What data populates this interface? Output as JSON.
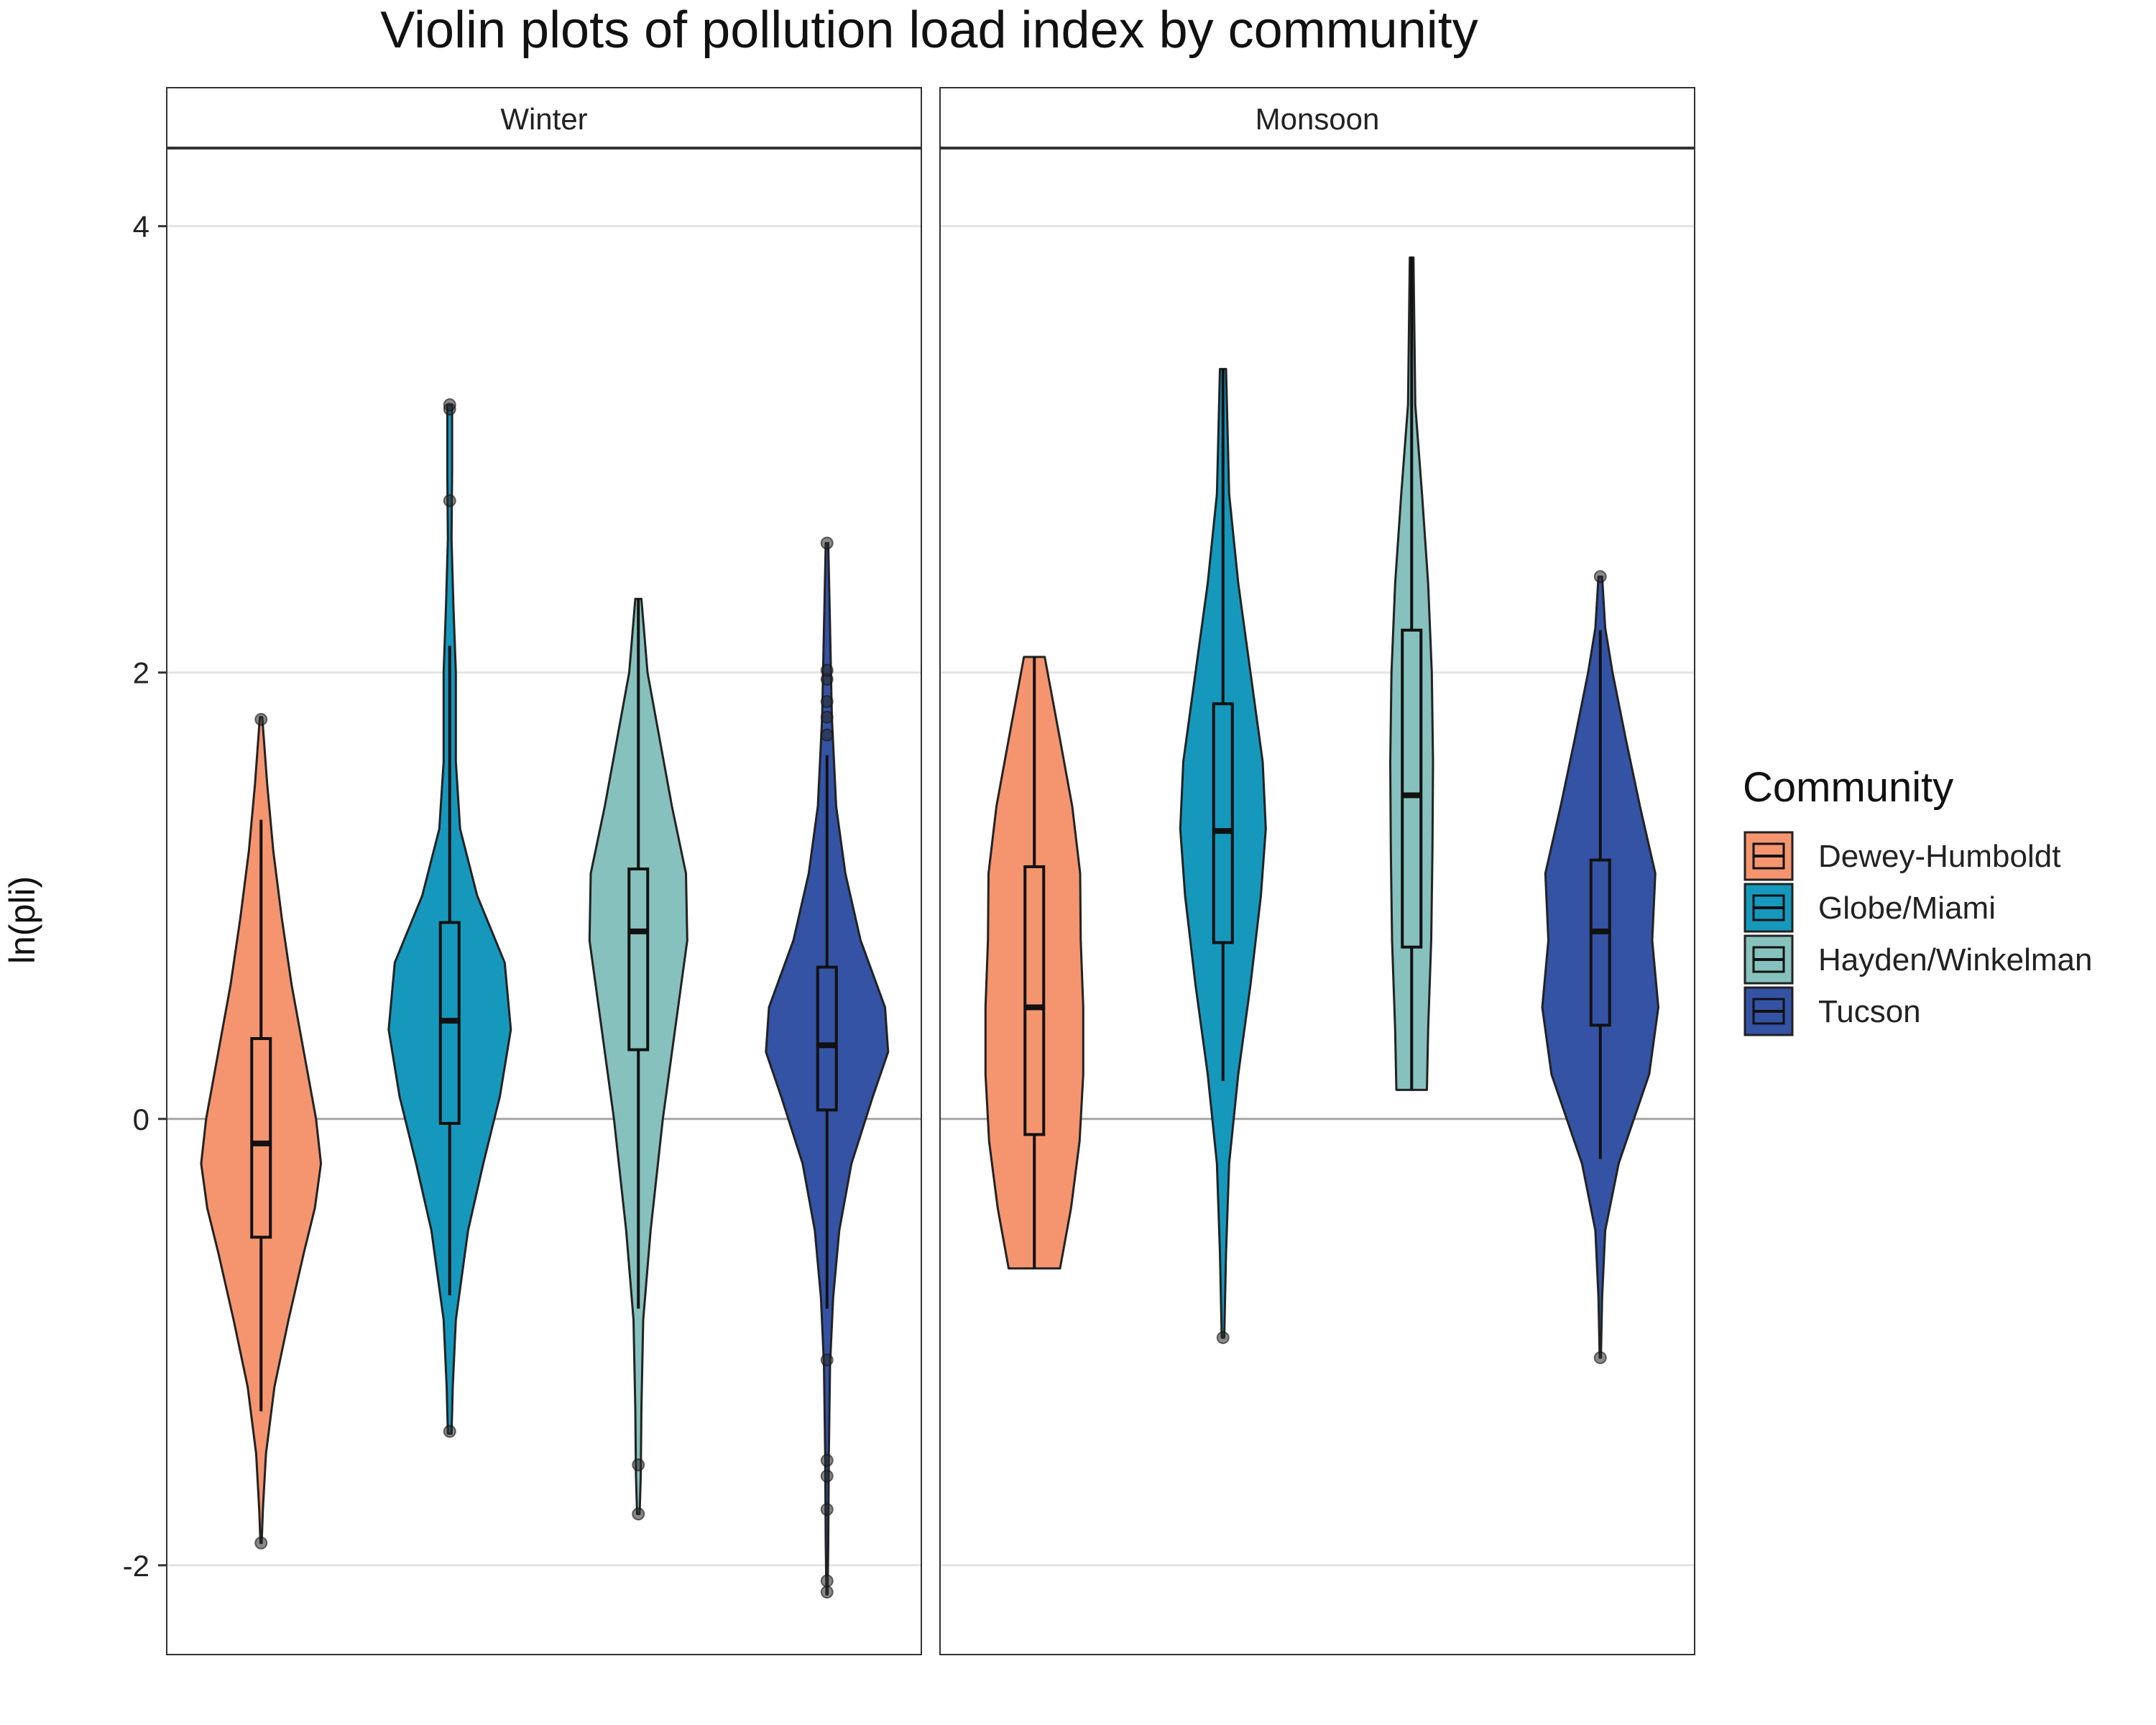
{
  "chart_data": {
    "type": "violin",
    "title": "Violin plots of pollution load index by community",
    "xlabel": "",
    "ylabel": "ln(pli)",
    "ylim": [
      -2.4,
      4.35
    ],
    "yticks": [
      -2,
      0,
      2,
      4
    ],
    "grid": true,
    "legend": {
      "title": "Community",
      "position": "right",
      "entries": [
        "Dewey-Humboldt",
        "Globe/Miami",
        "Hayden/Winkelman",
        "Tucson"
      ]
    },
    "colors": {
      "Dewey-Humboldt": "#F4956F",
      "Globe/Miami": "#1698BD",
      "Hayden/Winkelman": "#86C1BD",
      "Tucson": "#3453A5"
    },
    "facets": [
      {
        "label": "Winter",
        "series": [
          {
            "name": "Dewey-Humboldt",
            "box": {
              "min": -1.31,
              "q1": -0.53,
              "median": -0.11,
              "q3": 0.36,
              "max": 1.34
            },
            "violin": [
              [
                -1.9,
                0.01
              ],
              [
                -1.75,
                0.03
              ],
              [
                -1.5,
                0.08
              ],
              [
                -1.2,
                0.22
              ],
              [
                -0.9,
                0.45
              ],
              [
                -0.6,
                0.7
              ],
              [
                -0.4,
                0.88
              ],
              [
                -0.2,
                0.98
              ],
              [
                0.0,
                0.9
              ],
              [
                0.3,
                0.7
              ],
              [
                0.6,
                0.5
              ],
              [
                0.9,
                0.34
              ],
              [
                1.2,
                0.2
              ],
              [
                1.5,
                0.1
              ],
              [
                1.8,
                0.02
              ]
            ],
            "outliers": [
              -1.9,
              1.79
            ]
          },
          {
            "name": "Globe/Miami",
            "box": {
              "min": -0.79,
              "q1": -0.02,
              "median": 0.44,
              "q3": 0.88,
              "max": 2.12
            },
            "violin": [
              [
                -1.41,
                0.03
              ],
              [
                -1.2,
                0.05
              ],
              [
                -0.9,
                0.1
              ],
              [
                -0.5,
                0.3
              ],
              [
                -0.2,
                0.55
              ],
              [
                0.1,
                0.82
              ],
              [
                0.4,
                1.0
              ],
              [
                0.7,
                0.9
              ],
              [
                1.0,
                0.45
              ],
              [
                1.3,
                0.17
              ],
              [
                1.6,
                0.1
              ],
              [
                2.0,
                0.1
              ],
              [
                2.3,
                0.06
              ],
              [
                2.6,
                0.03
              ],
              [
                2.9,
                0.04
              ],
              [
                3.2,
                0.04
              ]
            ],
            "outliers": [
              -1.4,
              2.77,
              3.18,
              3.2
            ]
          },
          {
            "name": "Hayden/Winkelman",
            "box": {
              "min": -0.85,
              "q1": 0.31,
              "median": 0.84,
              "q3": 1.12,
              "max": 2.33
            },
            "violin": [
              [
                -1.77,
                0.02
              ],
              [
                -1.6,
                0.04
              ],
              [
                -1.3,
                0.05
              ],
              [
                -0.9,
                0.08
              ],
              [
                -0.5,
                0.2
              ],
              [
                0.0,
                0.4
              ],
              [
                0.4,
                0.6
              ],
              [
                0.8,
                0.8
              ],
              [
                1.1,
                0.78
              ],
              [
                1.4,
                0.55
              ],
              [
                1.7,
                0.35
              ],
              [
                2.0,
                0.15
              ],
              [
                2.33,
                0.05
              ]
            ],
            "outliers": [
              -1.77,
              -1.55
            ]
          },
          {
            "name": "Tucson",
            "box": {
              "min": -0.85,
              "q1": 0.04,
              "median": 0.33,
              "q3": 0.68,
              "max": 1.63
            },
            "violin": [
              [
                -2.13,
                0.01
              ],
              [
                -1.9,
                0.02
              ],
              [
                -1.5,
                0.03
              ],
              [
                -1.1,
                0.05
              ],
              [
                -0.8,
                0.1
              ],
              [
                -0.5,
                0.2
              ],
              [
                -0.2,
                0.4
              ],
              [
                0.1,
                0.75
              ],
              [
                0.3,
                1.0
              ],
              [
                0.5,
                0.95
              ],
              [
                0.8,
                0.55
              ],
              [
                1.1,
                0.3
              ],
              [
                1.4,
                0.15
              ],
              [
                1.8,
                0.08
              ],
              [
                2.2,
                0.05
              ],
              [
                2.58,
                0.02
              ]
            ],
            "outliers": [
              -2.12,
              -2.07,
              -1.75,
              -1.6,
              -1.53,
              -1.08,
              1.72,
              1.8,
              1.87,
              1.97,
              2.01,
              2.58
            ]
          }
        ]
      },
      {
        "label": "Monsoon",
        "series": [
          {
            "name": "Dewey-Humboldt",
            "box": {
              "min": -0.67,
              "q1": -0.07,
              "median": 0.5,
              "q3": 1.13,
              "max": 2.07
            },
            "violin": [
              [
                -0.67,
                0.42
              ],
              [
                -0.4,
                0.6
              ],
              [
                -0.1,
                0.74
              ],
              [
                0.2,
                0.8
              ],
              [
                0.5,
                0.8
              ],
              [
                0.8,
                0.76
              ],
              [
                1.1,
                0.75
              ],
              [
                1.4,
                0.62
              ],
              [
                1.7,
                0.42
              ],
              [
                2.07,
                0.17
              ]
            ],
            "outliers": []
          },
          {
            "name": "Globe/Miami",
            "box": {
              "min": 0.17,
              "q1": 0.79,
              "median": 1.29,
              "q3": 1.86,
              "max": 3.36
            },
            "violin": [
              [
                -0.98,
                0.02
              ],
              [
                -0.6,
                0.05
              ],
              [
                -0.2,
                0.1
              ],
              [
                0.2,
                0.25
              ],
              [
                0.6,
                0.45
              ],
              [
                1.0,
                0.62
              ],
              [
                1.3,
                0.7
              ],
              [
                1.6,
                0.65
              ],
              [
                2.0,
                0.45
              ],
              [
                2.4,
                0.25
              ],
              [
                2.8,
                0.1
              ],
              [
                3.36,
                0.05
              ]
            ],
            "outliers": [
              -0.98
            ]
          },
          {
            "name": "Hayden/Winkelman",
            "box": {
              "min": 0.13,
              "q1": 0.77,
              "median": 1.45,
              "q3": 2.19,
              "max": 3.86
            },
            "violin": [
              [
                0.13,
                0.25
              ],
              [
                0.4,
                0.27
              ],
              [
                0.8,
                0.32
              ],
              [
                1.2,
                0.34
              ],
              [
                1.6,
                0.35
              ],
              [
                2.0,
                0.33
              ],
              [
                2.4,
                0.27
              ],
              [
                2.8,
                0.17
              ],
              [
                3.2,
                0.06
              ],
              [
                3.86,
                0.03
              ]
            ],
            "outliers": []
          },
          {
            "name": "Tucson",
            "box": {
              "min": -0.18,
              "q1": 0.42,
              "median": 0.84,
              "q3": 1.16,
              "max": 2.19
            },
            "violin": [
              [
                -1.07,
                0.01
              ],
              [
                -0.8,
                0.03
              ],
              [
                -0.5,
                0.08
              ],
              [
                -0.2,
                0.3
              ],
              [
                0.2,
                0.8
              ],
              [
                0.5,
                0.95
              ],
              [
                0.8,
                0.85
              ],
              [
                1.1,
                0.9
              ],
              [
                1.4,
                0.65
              ],
              [
                1.7,
                0.42
              ],
              [
                2.0,
                0.2
              ],
              [
                2.2,
                0.08
              ],
              [
                2.43,
                0.03
              ]
            ],
            "outliers": [
              -1.07,
              2.43
            ]
          }
        ]
      }
    ]
  }
}
